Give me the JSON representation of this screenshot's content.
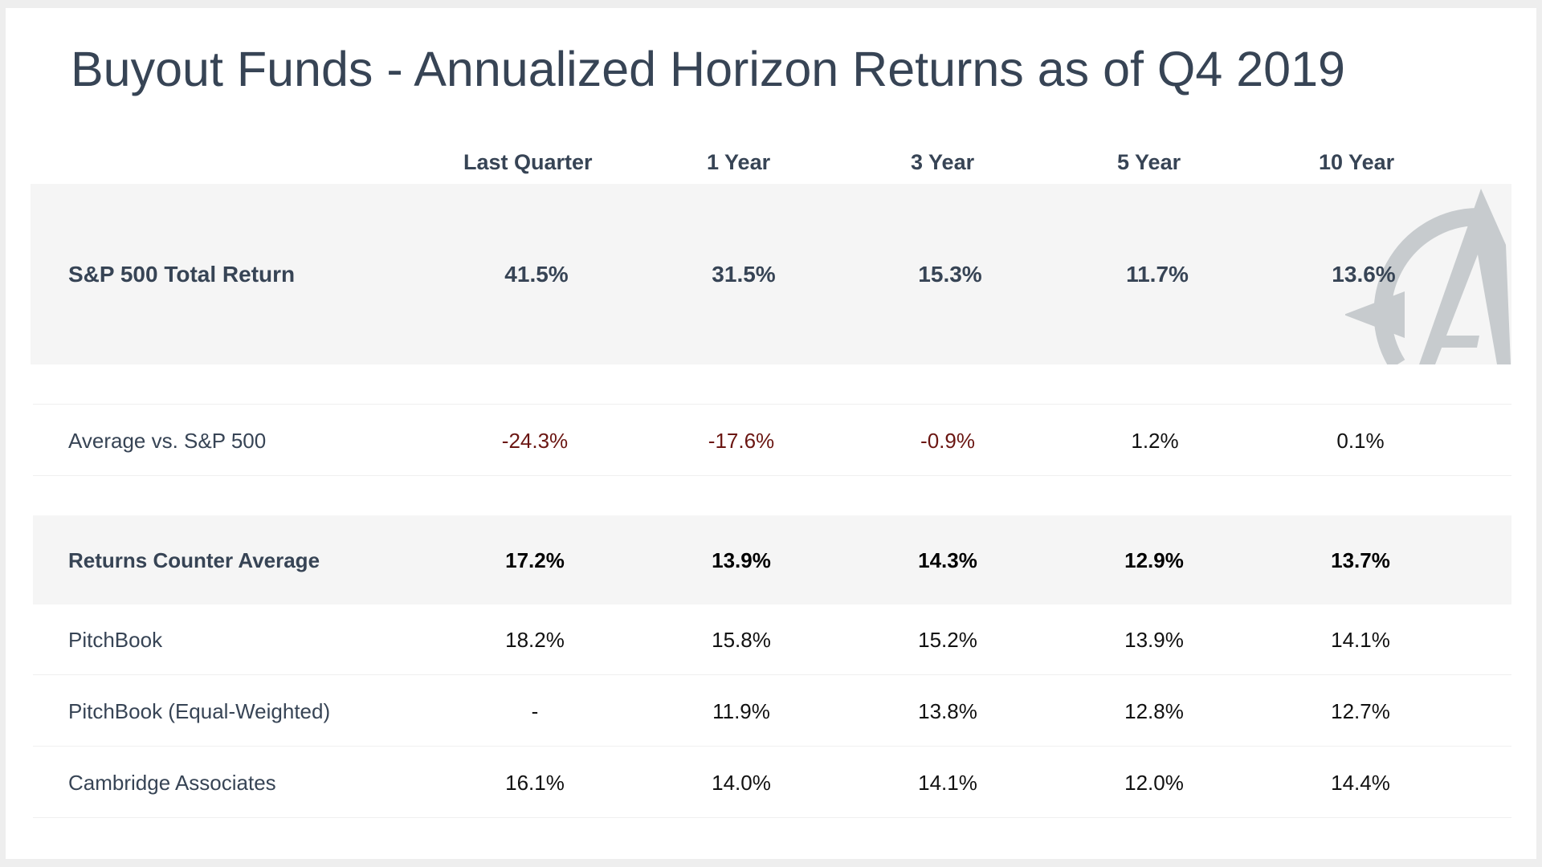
{
  "title": "Buyout Funds - Annualized Horizon Returns as of Q4 2019",
  "columns": [
    "Last Quarter",
    "1 Year",
    "3 Year",
    "5 Year",
    "10 Year"
  ],
  "rows": [
    {
      "label": "S&P 500 Total Return",
      "values": [
        "41.5%",
        "31.5%",
        "15.3%",
        "11.7%",
        "13.6%"
      ]
    },
    {
      "label": "Average vs. S&P 500",
      "values": [
        "-24.3%",
        "-17.6%",
        "-0.9%",
        "1.2%",
        "0.1%"
      ]
    },
    {
      "label": "Returns Counter Average",
      "values": [
        "17.2%",
        "13.9%",
        "14.3%",
        "12.9%",
        "13.7%"
      ]
    },
    {
      "label": "PitchBook",
      "values": [
        "18.2%",
        "15.8%",
        "15.2%",
        "13.9%",
        "14.1%"
      ]
    },
    {
      "label": "PitchBook (Equal-Weighted)",
      "values": [
        "-",
        "11.9%",
        "13.8%",
        "12.8%",
        "12.7%"
      ]
    },
    {
      "label": "Cambridge Associates",
      "values": [
        "16.1%",
        "14.0%",
        "14.1%",
        "12.0%",
        "14.4%"
      ]
    }
  ],
  "colors": {
    "title_text": "#374455",
    "negative_value": "#6b1612",
    "band_background": "#f5f5f5",
    "logo_watermark": "#c7cbce"
  },
  "logo": {
    "icon": "compass-a-logo-icon"
  }
}
